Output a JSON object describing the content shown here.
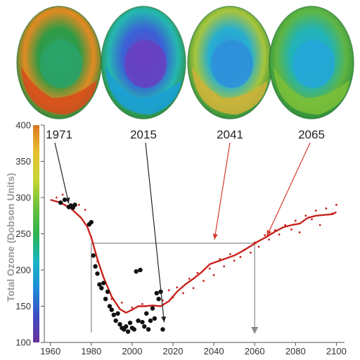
{
  "chart_data": {
    "type": "scatter",
    "title": "",
    "xlabel": "",
    "ylabel": "Total Ozone (Dobson Units)",
    "xlim": [
      1957,
      2104
    ],
    "ylim": [
      100,
      400
    ],
    "xticks": [
      "1960",
      "1980",
      "2000",
      "2020",
      "2040",
      "2060",
      "2080",
      "2100"
    ],
    "yticks": [
      "100",
      "150",
      "200",
      "250",
      "300",
      "350",
      "400"
    ],
    "colorbar": {
      "min": 100,
      "max": 400,
      "colors": [
        "#6b2f9a",
        "#3b4fc4",
        "#1f8ed8",
        "#19b5c4",
        "#2cb34e",
        "#6cc23a",
        "#c8d534",
        "#e8c12f",
        "#d9771f"
      ]
    },
    "globes": [
      {
        "year": "1971",
        "colors": {
          "center": "#2aa36a",
          "ring": "#2f9a45",
          "band": "#d84a1c",
          "band_mid": "#e38a22",
          "edge": "#2e8a3a"
        }
      },
      {
        "year": "2015",
        "colors": {
          "center": "#6a3fc0",
          "ring": "#3a62d6",
          "band": "#1b9fd8",
          "band_mid": "#25b7b0",
          "edge": "#2e8f3c"
        }
      },
      {
        "year": "2041",
        "colors": {
          "center": "#2f8fdc",
          "ring": "#27aed0",
          "band": "#cfb23a",
          "band_mid": "#a8c53c",
          "edge": "#2e8f3c"
        }
      },
      {
        "year": "2065",
        "colors": {
          "center": "#24a6d8",
          "ring": "#22b4b6",
          "band": "#7dc03a",
          "band_mid": "#5fb542",
          "edge": "#2e8f3c"
        }
      }
    ],
    "observations": [
      [
        1965,
        293
      ],
      [
        1967,
        297
      ],
      [
        1969,
        287
      ],
      [
        1970,
        289
      ],
      [
        1971,
        286
      ],
      [
        1972,
        290
      ],
      [
        1979,
        263
      ],
      [
        1980,
        266
      ],
      [
        1981,
        220
      ],
      [
        1982,
        205
      ],
      [
        1983,
        195
      ],
      [
        1984,
        180
      ],
      [
        1985,
        175
      ],
      [
        1986,
        182
      ],
      [
        1987,
        160
      ],
      [
        1988,
        170
      ],
      [
        1989,
        150
      ],
      [
        1990,
        145
      ],
      [
        1991,
        138
      ],
      [
        1992,
        130
      ],
      [
        1993,
        140
      ],
      [
        1994,
        125
      ],
      [
        1995,
        120
      ],
      [
        1996,
        118
      ],
      [
        1997,
        122
      ],
      [
        1998,
        115
      ],
      [
        1999,
        127
      ],
      [
        2000,
        120
      ],
      [
        2001,
        118
      ],
      [
        2002,
        198
      ],
      [
        2003,
        130
      ],
      [
        2004,
        200
      ],
      [
        2005,
        128
      ],
      [
        2006,
        122
      ],
      [
        2007,
        140
      ],
      [
        2008,
        118
      ],
      [
        2009,
        130
      ],
      [
        2010,
        147
      ],
      [
        2011,
        133
      ],
      [
        2012,
        168
      ],
      [
        2013,
        160
      ],
      [
        2014,
        170
      ],
      [
        2015,
        118
      ]
    ],
    "model_points": [
      [
        1963,
        300
      ],
      [
        1966,
        304
      ],
      [
        1974,
        290
      ],
      [
        1977,
        283
      ],
      [
        1983,
        212
      ],
      [
        1990,
        160
      ],
      [
        1995,
        155
      ],
      [
        2000,
        148
      ],
      [
        2005,
        153
      ],
      [
        2010,
        146
      ],
      [
        2015,
        158
      ],
      [
        2018,
        172
      ],
      [
        2020,
        162
      ],
      [
        2022,
        176
      ],
      [
        2025,
        168
      ],
      [
        2028,
        188
      ],
      [
        2030,
        175
      ],
      [
        2032,
        196
      ],
      [
        2035,
        185
      ],
      [
        2038,
        202
      ],
      [
        2040,
        193
      ],
      [
        2043,
        215
      ],
      [
        2045,
        205
      ],
      [
        2048,
        222
      ],
      [
        2050,
        213
      ],
      [
        2053,
        218
      ],
      [
        2055,
        228
      ],
      [
        2058,
        224
      ],
      [
        2060,
        238
      ],
      [
        2062,
        232
      ],
      [
        2065,
        248
      ],
      [
        2067,
        242
      ],
      [
        2070,
        255
      ],
      [
        2072,
        249
      ],
      [
        2075,
        262
      ],
      [
        2078,
        256
      ],
      [
        2080,
        268
      ],
      [
        2082,
        252
      ],
      [
        2085,
        275
      ],
      [
        2088,
        270
      ],
      [
        2090,
        282
      ],
      [
        2092,
        262
      ],
      [
        2095,
        285
      ],
      [
        2098,
        278
      ],
      [
        2100,
        290
      ]
    ],
    "trend": [
      [
        1960,
        297
      ],
      [
        1965,
        293
      ],
      [
        1970,
        285
      ],
      [
        1975,
        272
      ],
      [
        1978,
        260
      ],
      [
        1980,
        245
      ],
      [
        1983,
        215
      ],
      [
        1986,
        190
      ],
      [
        1990,
        163
      ],
      [
        1994,
        146
      ],
      [
        1997,
        141
      ],
      [
        2000,
        145
      ],
      [
        2003,
        150
      ],
      [
        2006,
        150
      ],
      [
        2010,
        151
      ],
      [
        2014,
        150
      ],
      [
        2018,
        157
      ],
      [
        2022,
        170
      ],
      [
        2026,
        180
      ],
      [
        2030,
        188
      ],
      [
        2034,
        197
      ],
      [
        2038,
        208
      ],
      [
        2042,
        212
      ],
      [
        2046,
        216
      ],
      [
        2050,
        220
      ],
      [
        2054,
        226
      ],
      [
        2058,
        233
      ],
      [
        2062,
        240
      ],
      [
        2066,
        246
      ],
      [
        2070,
        253
      ],
      [
        2074,
        259
      ],
      [
        2078,
        262
      ],
      [
        2082,
        264
      ],
      [
        2086,
        272
      ],
      [
        2090,
        275
      ],
      [
        2094,
        276
      ],
      [
        2098,
        277
      ],
      [
        2100,
        280
      ]
    ],
    "guides": {
      "threshold": 237,
      "years": [
        1980,
        2060
      ]
    },
    "colors": {
      "trend": "#c8231d",
      "points": "#111111",
      "model_points": "#c8231d",
      "arrow_dark": "#222222",
      "arrow_red": "#d43a2c",
      "guide": "#8a8a8a"
    }
  }
}
